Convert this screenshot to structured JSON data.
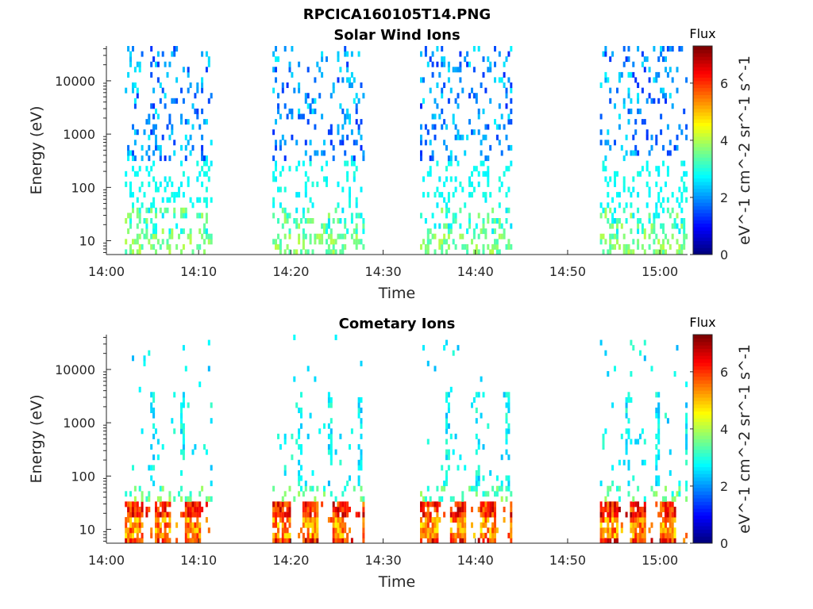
{
  "chart_data": {
    "title": "RPCICA160105T14.PNG",
    "colormap": "jet",
    "colorbar": {
      "title": "Flux",
      "label": "eV^-1 cm^-2 sr^-1 s^-1",
      "ticks": [
        0,
        2,
        4,
        6
      ],
      "range": [
        0,
        7.3
      ]
    },
    "x_axis": {
      "label": "Time",
      "range_minutes": [
        0,
        63
      ],
      "ticks": [
        {
          "min": 0,
          "label": "14:00"
        },
        {
          "min": 10,
          "label": "14:10"
        },
        {
          "min": 20,
          "label": "14:20"
        },
        {
          "min": 30,
          "label": "14:30"
        },
        {
          "min": 40,
          "label": "14:40"
        },
        {
          "min": 50,
          "label": "14:50"
        },
        {
          "min": 60,
          "label": "15:00"
        }
      ]
    },
    "y_axis": {
      "label": "Energy (eV)",
      "scale": "log",
      "range": [
        5.5,
        45000
      ],
      "ticks": [
        {
          "value": 10,
          "label": "10"
        },
        {
          "value": 100,
          "label": "100"
        },
        {
          "value": 1000,
          "label": "1000"
        },
        {
          "value": 10000,
          "label": "10000"
        }
      ]
    },
    "panels": [
      {
        "type": "heatmap",
        "subtitle": "Solar Wind Ions",
        "intervals_minutes": [
          [
            2,
            11.5
          ],
          [
            18,
            27.8
          ],
          [
            34,
            44
          ],
          [
            53.5,
            63
          ]
        ],
        "typical_flux": {
          "high_energy": 2.4,
          "low_energy": 3.6
        }
      },
      {
        "type": "heatmap",
        "subtitle": "Cometary Ions",
        "intervals_minutes": [
          [
            2,
            11.5
          ],
          [
            18,
            27.8
          ],
          [
            34,
            44
          ],
          [
            53.5,
            63
          ]
        ],
        "typical_flux": {
          "high_energy": 2.8,
          "low_energy": 6.5
        }
      }
    ]
  }
}
